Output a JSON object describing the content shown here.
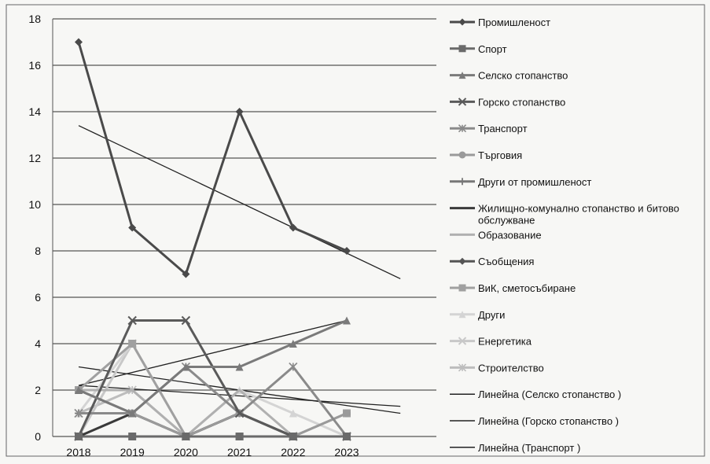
{
  "chart_data": {
    "type": "line",
    "categories": [
      "2018",
      "2019",
      "2020",
      "2021",
      "2022",
      "2023"
    ],
    "ylim": [
      0,
      18
    ],
    "yticks": [
      0,
      2,
      4,
      6,
      8,
      10,
      12,
      14,
      16,
      18
    ],
    "grid": true,
    "legend_position": "right",
    "series": [
      {
        "name": "Промишленост",
        "color": "#4a4a4a",
        "marker": "diamond",
        "values": [
          17,
          9,
          7,
          14,
          9,
          8
        ]
      },
      {
        "name": "Спорт",
        "color": "#6a6a6a",
        "marker": "square",
        "values": [
          0,
          0,
          0,
          0,
          0,
          0
        ]
      },
      {
        "name": "Селско стопанство",
        "color": "#7a7a7a",
        "marker": "triangle",
        "values": [
          2,
          1,
          3,
          3,
          4,
          5
        ]
      },
      {
        "name": "Горско стопанство",
        "color": "#5a5a5a",
        "marker": "x",
        "values": [
          0,
          5,
          5,
          1,
          0,
          0
        ]
      },
      {
        "name": "Транспорт",
        "color": "#8a8a8a",
        "marker": "star",
        "values": [
          1,
          1,
          3,
          1,
          3,
          0
        ]
      },
      {
        "name": "Търговия",
        "color": "#9a9a9a",
        "marker": "circle",
        "values": [
          2,
          1,
          0,
          1,
          0,
          1
        ]
      },
      {
        "name": "Други от промишленост",
        "color": "#777777",
        "marker": "plus",
        "values": [
          1,
          1,
          0,
          1,
          0,
          0
        ]
      },
      {
        "name": "Жилищно-комунално стопанство и битово обслужване",
        "color": "#3a3a3a",
        "marker": "none",
        "values": [
          0,
          1,
          0,
          1,
          0,
          0
        ]
      },
      {
        "name": "Образование",
        "color": "#b0b0b0",
        "marker": "none",
        "values": [
          2,
          2,
          0,
          2,
          0,
          0
        ]
      },
      {
        "name": "Съобщения",
        "color": "#555555",
        "marker": "diamond",
        "values": [
          0,
          0,
          0,
          1,
          0,
          0
        ]
      },
      {
        "name": "ВиК, сметосъбиране",
        "color": "#a0a0a0",
        "marker": "square",
        "values": [
          2,
          4,
          0,
          0,
          0,
          1
        ]
      },
      {
        "name": "Други",
        "color": "#d4d4d4",
        "marker": "triangle",
        "values": [
          1,
          4,
          0,
          2,
          1,
          0
        ]
      },
      {
        "name": "Енергетика",
        "color": "#c8c8c8",
        "marker": "x",
        "values": [
          0,
          4,
          0,
          1,
          0,
          0
        ]
      },
      {
        "name": "Строителство",
        "color": "#bdbdbd",
        "marker": "star",
        "values": [
          1,
          2,
          0,
          1,
          0,
          0
        ]
      }
    ],
    "trendlines": [
      {
        "name": "Линейна (Селско стопанство        )",
        "color": "#222222",
        "start": [
          2018,
          2.2
        ],
        "end": [
          2023,
          5.0
        ]
      },
      {
        "name": "Линейна (Горско стопанство        )",
        "color": "#222222",
        "start": [
          2018,
          3.0
        ],
        "end": [
          2024,
          1.0
        ]
      },
      {
        "name": "Линейна (Транспорт   )",
        "color": "#222222",
        "start": [
          2018,
          2.2
        ],
        "end": [
          2024,
          1.3
        ]
      },
      {
        "name": "",
        "color": "#222222",
        "start": [
          2018,
          13.4
        ],
        "end": [
          2024,
          6.8
        ]
      }
    ]
  }
}
